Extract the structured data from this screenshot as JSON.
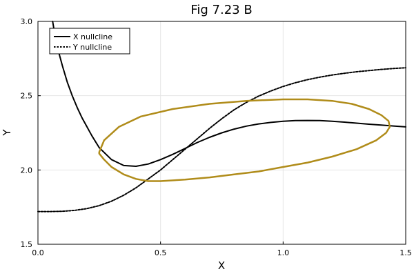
{
  "chart_data": {
    "type": "line",
    "title": "Fig 7.23 B",
    "xlabel": "X",
    "ylabel": "Y",
    "xlim": [
      0.0,
      1.5
    ],
    "ylim": [
      1.5,
      3.0
    ],
    "x_ticks": [
      0.0,
      0.5,
      1.0,
      1.5
    ],
    "x_tick_labels": [
      "0.0",
      "0.5",
      "1.0",
      "1.5"
    ],
    "y_ticks": [
      1.5,
      2.0,
      2.5,
      3.0
    ],
    "y_tick_labels": [
      "1.5",
      "2.0",
      "2.5",
      "3.0"
    ],
    "grid": true,
    "legend_position": "top-left",
    "series": [
      {
        "name": "X nullcline",
        "style": "solid",
        "color": "#000000",
        "x": [
          0.06,
          0.075,
          0.1,
          0.12,
          0.14,
          0.16,
          0.18,
          0.2,
          0.22,
          0.25,
          0.3,
          0.35,
          0.4,
          0.45,
          0.5,
          0.55,
          0.6,
          0.65,
          0.7,
          0.75,
          0.8,
          0.85,
          0.9,
          0.95,
          1.0,
          1.05,
          1.1,
          1.15,
          1.2,
          1.25,
          1.3,
          1.35,
          1.4,
          1.45,
          1.5
        ],
        "y": [
          3.0,
          2.85,
          2.7,
          2.59,
          2.5,
          2.42,
          2.35,
          2.29,
          2.23,
          2.15,
          2.07,
          2.03,
          2.025,
          2.04,
          2.07,
          2.105,
          2.145,
          2.185,
          2.22,
          2.25,
          2.275,
          2.295,
          2.31,
          2.32,
          2.328,
          2.332,
          2.333,
          2.332,
          2.328,
          2.322,
          2.315,
          2.308,
          2.302,
          2.296,
          2.29
        ]
      },
      {
        "name": "Y nullcline",
        "style": "dotted",
        "color": "#000000",
        "x": [
          0.0,
          0.05,
          0.1,
          0.15,
          0.2,
          0.25,
          0.3,
          0.35,
          0.4,
          0.45,
          0.5,
          0.55,
          0.6,
          0.65,
          0.7,
          0.75,
          0.8,
          0.85,
          0.9,
          0.95,
          1.0,
          1.05,
          1.1,
          1.15,
          1.2,
          1.25,
          1.3,
          1.35,
          1.4,
          1.45,
          1.5
        ],
        "y": [
          1.72,
          1.72,
          1.722,
          1.728,
          1.74,
          1.76,
          1.79,
          1.83,
          1.88,
          1.94,
          2.0,
          2.07,
          2.14,
          2.21,
          2.28,
          2.345,
          2.405,
          2.455,
          2.497,
          2.532,
          2.562,
          2.587,
          2.608,
          2.625,
          2.639,
          2.651,
          2.661,
          2.669,
          2.677,
          2.683,
          2.688
        ]
      },
      {
        "name": "",
        "style": "solid",
        "color": "#b08c1a",
        "closed": true,
        "x": [
          0.25,
          0.27,
          0.33,
          0.42,
          0.55,
          0.7,
          0.85,
          1.0,
          1.1,
          1.2,
          1.28,
          1.35,
          1.4,
          1.43,
          1.435,
          1.42,
          1.38,
          1.3,
          1.2,
          1.1,
          1.0,
          0.9,
          0.8,
          0.7,
          0.6,
          0.5,
          0.45,
          0.4,
          0.35,
          0.3,
          0.27,
          0.25,
          0.25
        ],
        "y": [
          2.12,
          2.2,
          2.29,
          2.36,
          2.41,
          2.445,
          2.465,
          2.475,
          2.475,
          2.465,
          2.445,
          2.41,
          2.37,
          2.33,
          2.29,
          2.25,
          2.2,
          2.14,
          2.09,
          2.05,
          2.02,
          1.99,
          1.97,
          1.95,
          1.935,
          1.925,
          1.925,
          1.94,
          1.97,
          2.02,
          2.07,
          2.11,
          2.12
        ]
      }
    ]
  }
}
